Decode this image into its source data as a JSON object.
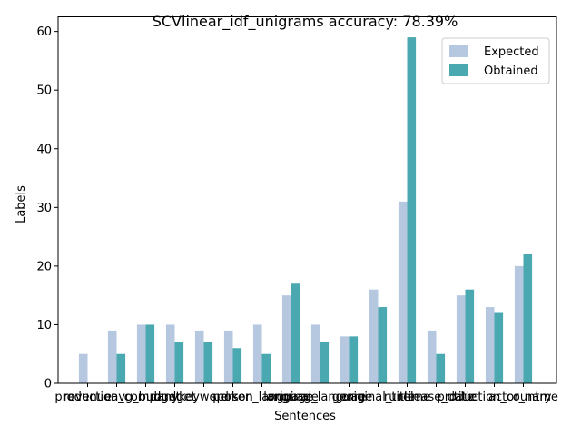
{
  "chart_data": {
    "type": "bar",
    "title": "SCVlinear_idf_unigrams accuracy: 78.39%",
    "xlabel": "Sentences",
    "ylabel": "Labels",
    "ylim": [
      0,
      62.5
    ],
    "yticks": [
      0,
      10,
      20,
      30,
      40,
      50,
      60
    ],
    "grid": false,
    "legend_position": "top-right",
    "categories": [
      "revenue",
      "production_company",
      "avg_budget",
      "budget",
      "keyword",
      "person",
      "spoken_language",
      "language",
      "original_language",
      "genre",
      "original_title",
      "runtime",
      "release_date",
      "title",
      "production_country",
      "actor_name"
    ],
    "series": [
      {
        "name": "Expected",
        "color": "#b5c8e0",
        "values": [
          5,
          9,
          10,
          10,
          9,
          9,
          10,
          15,
          10,
          8,
          16,
          31,
          9,
          15,
          13,
          20
        ]
      },
      {
        "name": "Obtained",
        "color": "#4aa8b0",
        "values": [
          0,
          5,
          10,
          7,
          7,
          6,
          5,
          17,
          7,
          8,
          13,
          59,
          5,
          16,
          12,
          22
        ]
      }
    ]
  }
}
